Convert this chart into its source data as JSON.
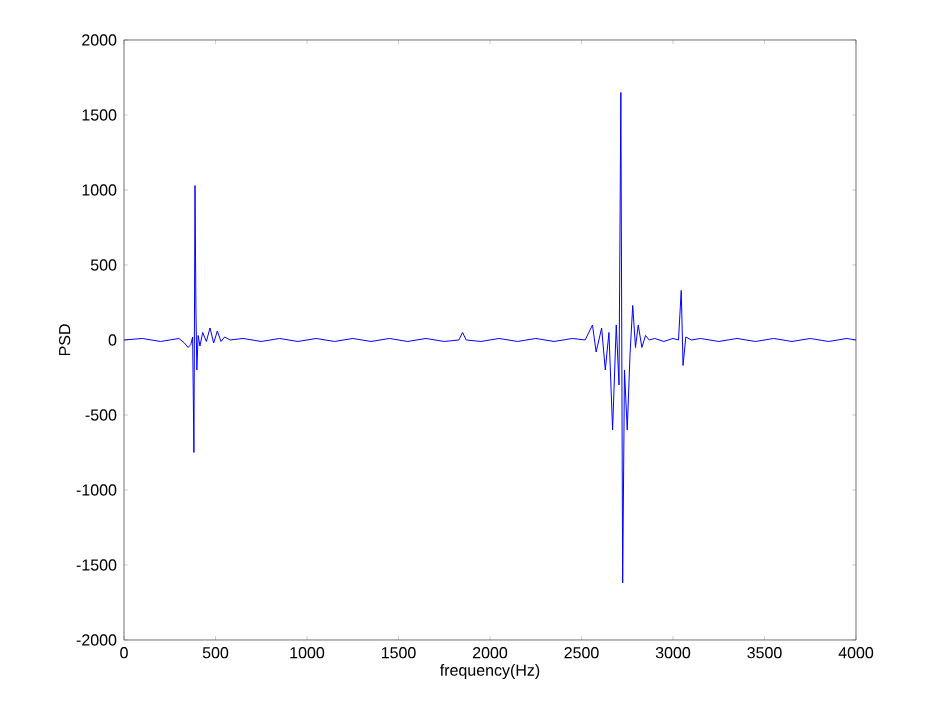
{
  "chart_data": {
    "type": "line",
    "xlabel": "frequency(Hz)",
    "ylabel": "PSD",
    "xlim": [
      0,
      4000
    ],
    "ylim": [
      -2000,
      2000
    ],
    "xticks": [
      0,
      500,
      1000,
      1500,
      2000,
      2500,
      3000,
      3500,
      4000
    ],
    "yticks": [
      -2000,
      -1500,
      -1000,
      -500,
      0,
      500,
      1000,
      1500,
      2000
    ],
    "marker": "none",
    "line_style": "solid",
    "series": [
      {
        "color": "#0000ff",
        "x": [
          0,
          100,
          200,
          300,
          330,
          350,
          365,
          375,
          382,
          388,
          393,
          398,
          405,
          415,
          430,
          450,
          470,
          490,
          510,
          530,
          550,
          580,
          650,
          750,
          850,
          950,
          1050,
          1150,
          1250,
          1350,
          1450,
          1550,
          1650,
          1750,
          1830,
          1850,
          1870,
          1950,
          2050,
          2150,
          2250,
          2350,
          2450,
          2520,
          2560,
          2580,
          2610,
          2630,
          2650,
          2670,
          2690,
          2705,
          2715,
          2725,
          2735,
          2750,
          2765,
          2780,
          2795,
          2810,
          2830,
          2850,
          2870,
          2900,
          2950,
          3000,
          3030,
          3045,
          3055,
          3070,
          3100,
          3150,
          3250,
          3350,
          3450,
          3550,
          3650,
          3750,
          3850,
          3950,
          4000
        ],
        "values": [
          0,
          10,
          -10,
          10,
          -20,
          -50,
          -30,
          20,
          -750,
          1030,
          200,
          -200,
          30,
          -40,
          50,
          -10,
          80,
          -20,
          60,
          -10,
          20,
          0,
          10,
          -10,
          10,
          -10,
          10,
          -10,
          10,
          -10,
          10,
          -10,
          10,
          -10,
          0,
          50,
          0,
          -10,
          10,
          -10,
          10,
          -10,
          10,
          0,
          100,
          -80,
          80,
          -200,
          50,
          -600,
          100,
          -300,
          1650,
          -1620,
          -200,
          -600,
          -100,
          230,
          -50,
          100,
          -50,
          30,
          0,
          10,
          -10,
          10,
          0,
          330,
          -170,
          20,
          0,
          10,
          -10,
          10,
          -10,
          10,
          -10,
          10,
          -10,
          10,
          0
        ]
      }
    ]
  }
}
